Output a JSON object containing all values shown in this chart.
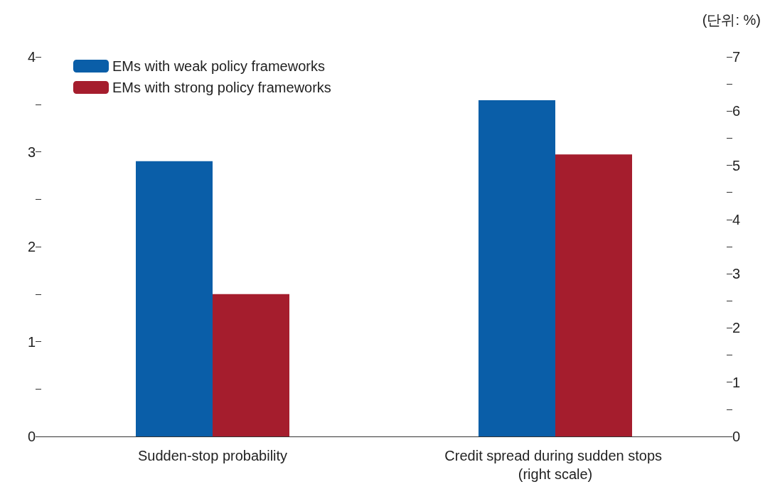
{
  "chart_data": {
    "type": "bar",
    "categories": [
      "Sudden-stop probability",
      "Credit spread during sudden stops (right scale)"
    ],
    "series": [
      {
        "name": "EMs with weak policy frameworks",
        "color": "#0a5ea8",
        "values": [
          2.9,
          null
        ]
      },
      {
        "name": "EMs with strong policy frameworks",
        "color": "#a51d2d",
        "values": [
          1.5,
          null
        ]
      },
      {
        "color": "#0a5ea8",
        "values": [
          null,
          6.2
        ],
        "axis": "y2"
      },
      {
        "color": "#a51d2d",
        "values": [
          null,
          5.2
        ],
        "axis": "y2"
      }
    ],
    "ylim": [
      0,
      4
    ],
    "yticks": [
      0,
      {
        "value": 0.5,
        "label": null
      },
      1,
      {
        "value": 1.5,
        "label": null
      },
      2,
      {
        "value": 2.5,
        "label": null
      },
      3,
      {
        "value": 3.5,
        "label": null
      },
      4
    ],
    "y2lim": [
      0,
      7
    ],
    "y2ticks": [
      0,
      {
        "value": 0.5,
        "label": null
      },
      1,
      {
        "value": 1.5,
        "label": null
      },
      2,
      {
        "value": 2.5,
        "label": null
      },
      3,
      {
        "value": 3.5,
        "label": null
      },
      4,
      {
        "value": 4.5,
        "label": null
      },
      5,
      {
        "value": 5.5,
        "label": null
      },
      6,
      {
        "value": 6.5,
        "label": null
      },
      7
    ],
    "annotations": [
      "(단위: %)"
    ],
    "legend": "top left",
    "grid": false
  }
}
